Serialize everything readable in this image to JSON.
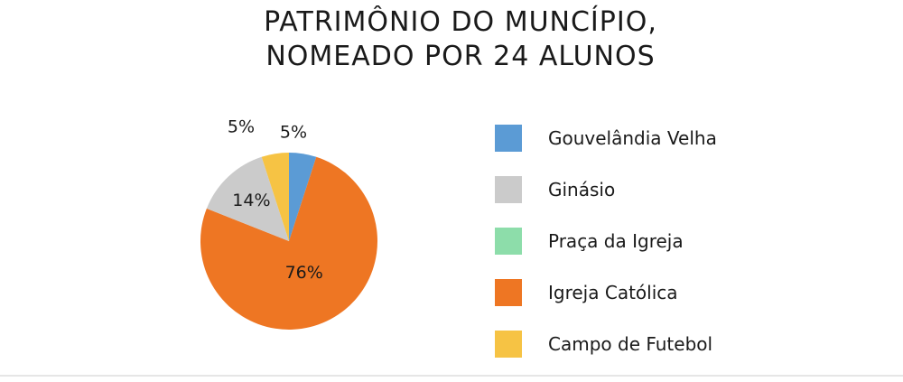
{
  "chart_data": {
    "type": "pie",
    "title_lines": [
      "PATRIMÔNIO DO MUNCÍPIO,",
      "NOMEADO POR 24 ALUNOS"
    ],
    "legend_position": "right",
    "slices": [
      {
        "label": "Gouvelândia Velha",
        "value": 5,
        "display": "5%",
        "color": "#5b9bd5"
      },
      {
        "label": "Ginásio",
        "value": 14,
        "display": "14%",
        "color": "#cbcbcb"
      },
      {
        "label": "Praça da Igreja",
        "value": 0,
        "display": "",
        "color": "#8dddaa"
      },
      {
        "label": "Igreja Católica",
        "value": 76,
        "display": "76%",
        "color": "#ee7623"
      },
      {
        "label": "Campo de Futebol",
        "value": 5,
        "display": "5%",
        "color": "#f6c344"
      }
    ],
    "pie_draw_order": [
      "Gouvelândia Velha",
      "Igreja Católica",
      "Ginásio",
      "Campo de Futebol"
    ]
  }
}
